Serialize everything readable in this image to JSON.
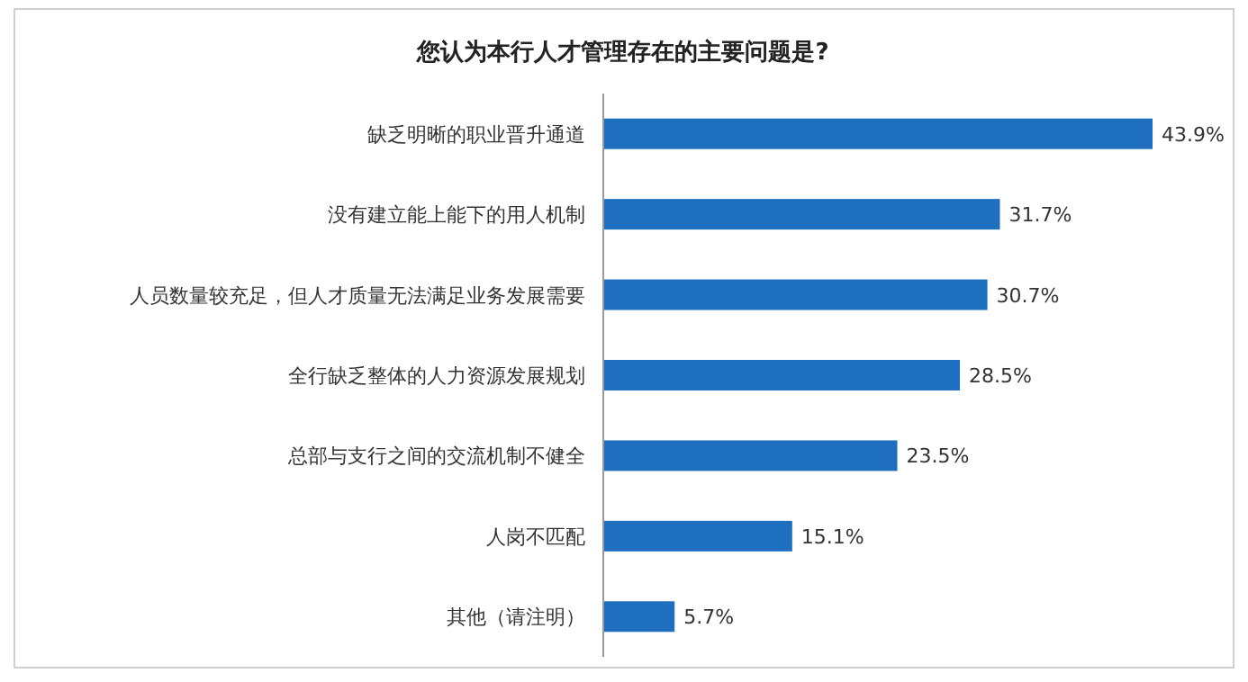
{
  "chart_data": {
    "type": "bar",
    "orientation": "horizontal",
    "title": "您认为本行人才管理存在的主要问题是?",
    "categories": [
      "缺乏明晰的职业晋升通道",
      "没有建立能上能下的用人机制",
      "人员数量较充足，但人才质量无法满足业务发展需要",
      "全行缺乏整体的人力资源发展规划",
      "总部与支行之间的交流机制不健全",
      "人岗不匹配",
      "其他（请注明）"
    ],
    "values": [
      43.9,
      31.7,
      30.7,
      28.5,
      23.5,
      15.1,
      5.7
    ],
    "value_labels": [
      "43.9%",
      "31.7%",
      "30.7%",
      "28.5%",
      "23.5%",
      "15.1%",
      "5.7%"
    ],
    "color": "#1f6fc0"
  }
}
